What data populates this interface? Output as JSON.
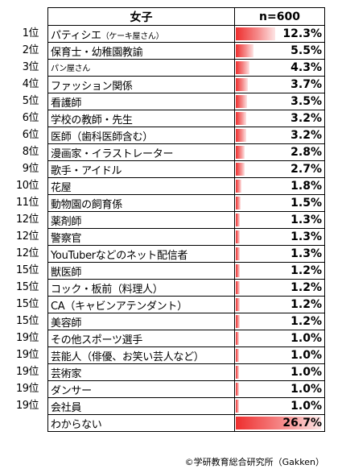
{
  "header": {
    "category": "女子",
    "n_label": "n=600"
  },
  "source": "©学研教育総合研究所（Gakken）",
  "chart_data": {
    "type": "table",
    "columns": [
      "女子",
      "n=600"
    ],
    "rows": [
      {
        "rank": "1位",
        "name": "パティシエ",
        "note": "（ケーキ屋さん）",
        "label": "12.3%",
        "value": 12.3
      },
      {
        "rank": "2位",
        "name": "保育士・幼稚園教諭",
        "note": "",
        "label": "5.5%",
        "value": 5.5
      },
      {
        "rank": "3位",
        "name": "パン屋さん",
        "note": "",
        "label": "4.3%",
        "value": 4.3
      },
      {
        "rank": "4位",
        "name": "ファッション関係",
        "note": "",
        "label": "3.7%",
        "value": 3.7
      },
      {
        "rank": "5位",
        "name": "看護師",
        "note": "",
        "label": "3.5%",
        "value": 3.5
      },
      {
        "rank": "6位",
        "name": "学校の教師・先生",
        "note": "",
        "label": "3.2%",
        "value": 3.2
      },
      {
        "rank": "6位",
        "name": "医師（歯科医師含む）",
        "note": "",
        "label": "3.2%",
        "value": 3.2
      },
      {
        "rank": "8位",
        "name": "漫画家・イラストレーター",
        "note": "",
        "label": "2.8%",
        "value": 2.8
      },
      {
        "rank": "9位",
        "name": "歌手・アイドル",
        "note": "",
        "label": "2.7%",
        "value": 2.7
      },
      {
        "rank": "10位",
        "name": "花屋",
        "note": "",
        "label": "1.8%",
        "value": 1.8
      },
      {
        "rank": "11位",
        "name": "動物園の飼育係",
        "note": "",
        "label": "1.5%",
        "value": 1.5
      },
      {
        "rank": "12位",
        "name": "薬剤師",
        "note": "",
        "label": "1.3%",
        "value": 1.3
      },
      {
        "rank": "12位",
        "name": "警察官",
        "note": "",
        "label": "1.3%",
        "value": 1.3
      },
      {
        "rank": "12位",
        "name": "YouTuberなどのネット配信者",
        "note": "",
        "label": "1.3%",
        "value": 1.3
      },
      {
        "rank": "15位",
        "name": "獣医師",
        "note": "",
        "label": "1.2%",
        "value": 1.2
      },
      {
        "rank": "15位",
        "name": "コック・板前（料理人）",
        "note": "",
        "label": "1.2%",
        "value": 1.2
      },
      {
        "rank": "15位",
        "name": "CA（キャビンアテンダント）",
        "note": "",
        "label": "1.2%",
        "value": 1.2
      },
      {
        "rank": "15位",
        "name": "美容師",
        "note": "",
        "label": "1.2%",
        "value": 1.2
      },
      {
        "rank": "19位",
        "name": "その他スポーツ選手",
        "note": "",
        "label": "1.0%",
        "value": 1.0
      },
      {
        "rank": "19位",
        "name": "芸能人（俳優、お笑い芸人など）",
        "note": "",
        "label": "1.0%",
        "value": 1.0
      },
      {
        "rank": "19位",
        "name": "芸術家",
        "note": "",
        "label": "1.0%",
        "value": 1.0
      },
      {
        "rank": "19位",
        "name": "ダンサー",
        "note": "",
        "label": "1.0%",
        "value": 1.0
      },
      {
        "rank": "19位",
        "name": "会社員",
        "note": "",
        "label": "1.0%",
        "value": 1.0
      },
      {
        "rank": "",
        "name": "わからない",
        "note": "",
        "label": "26.7%",
        "value": 26.7
      }
    ],
    "bar_max": 26.7,
    "bar_color": "#ee2e2e"
  }
}
